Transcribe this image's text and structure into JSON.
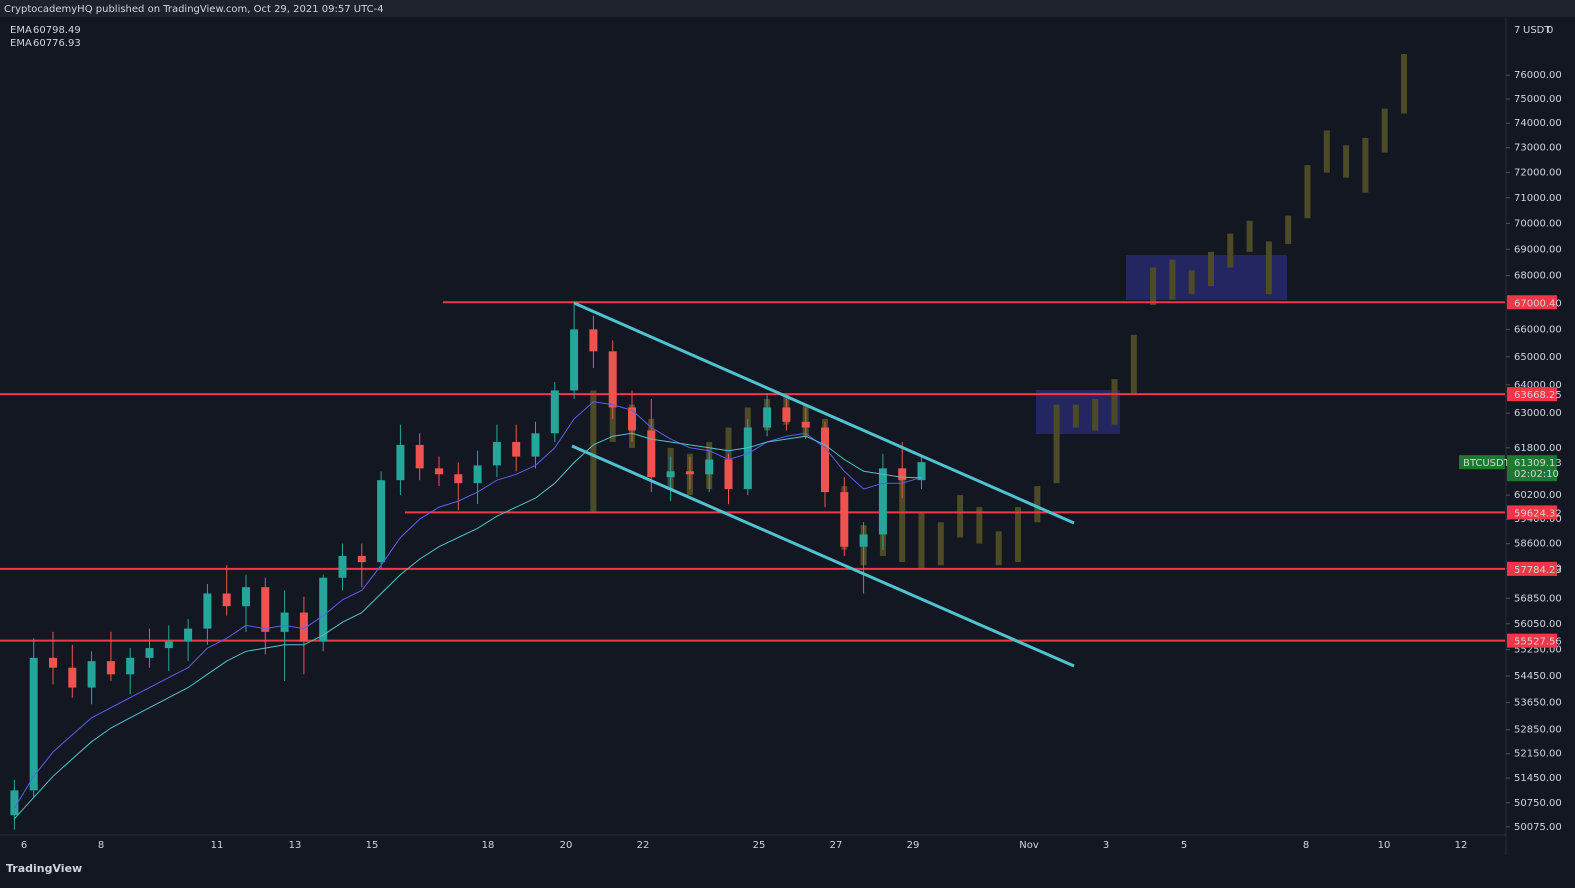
{
  "header": {
    "title": "CryptocademyHQ published on TradingView.com, Oct 29, 2021 09:57 UTC-4",
    "top_right": [
      "7",
      "USDT",
      "0"
    ],
    "footer": "TradingView"
  },
  "chart_data": {
    "type": "candlestick",
    "log_scale": true,
    "ylim": [
      49850,
      78450
    ],
    "yticks": [
      {
        "value": 76000,
        "label": "76000.00"
      },
      {
        "value": 75000,
        "label": "75000.00"
      },
      {
        "value": 74000,
        "label": "74000.00"
      },
      {
        "value": 73000,
        "label": "73000.00"
      },
      {
        "value": 72000,
        "label": "72000.00"
      },
      {
        "value": 71000,
        "label": "71000.00"
      },
      {
        "value": 70000,
        "label": "70000.00"
      },
      {
        "value": 69000,
        "label": "69000.00"
      },
      {
        "value": 68000,
        "label": "68000.00"
      },
      {
        "value": 66000,
        "label": "66000.00"
      },
      {
        "value": 65000,
        "label": "65000.00"
      },
      {
        "value": 64000,
        "label": "64000.00"
      },
      {
        "value": 63000,
        "label": "63000.00"
      },
      {
        "value": 61800,
        "label": "61800.00"
      },
      {
        "value": 60200,
        "label": "60200.00"
      },
      {
        "value": 59400,
        "label": "59400.00"
      },
      {
        "value": 58600,
        "label": "58600.00"
      },
      {
        "value": 57800,
        "label": "57800.00"
      },
      {
        "value": 56850,
        "label": "56850.00"
      },
      {
        "value": 56050,
        "label": "56050.00"
      },
      {
        "value": 55250,
        "label": "55250.00"
      },
      {
        "value": 54450,
        "label": "54450.00"
      },
      {
        "value": 53650,
        "label": "53650.00"
      },
      {
        "value": 52850,
        "label": "52850.00"
      },
      {
        "value": 52150,
        "label": "52150.00"
      },
      {
        "value": 51450,
        "label": "51450.00"
      },
      {
        "value": 50750,
        "label": "50750.00"
      },
      {
        "value": 50075,
        "label": "50075.00"
      }
    ],
    "xtick_labels": [
      "6",
      "8",
      "11",
      "13",
      "15",
      "18",
      "20",
      "22",
      "25",
      "27",
      "29",
      "Nov",
      "3",
      "5",
      "8",
      "10",
      "12"
    ],
    "up_color": "#26a69a",
    "down_color": "#ef5350",
    "open": [
      50400,
      51100,
      55000,
      54700,
      54100,
      54900,
      54500,
      55000,
      55300,
      55500,
      55900,
      57000,
      56600,
      57200,
      55800,
      56400,
      55500,
      57500,
      58200,
      58000,
      60700,
      61900,
      61100,
      60900,
      60600,
      61200,
      62000,
      61500,
      62300,
      63800,
      66000,
      65200,
      63200,
      62400,
      60800,
      61000,
      60900,
      61400,
      60400,
      62500,
      63200,
      62700,
      62500,
      60300,
      58500,
      58900,
      61100,
      60700
    ],
    "high": [
      51400,
      55600,
      55800,
      55400,
      55200,
      55800,
      55300,
      55900,
      56000,
      56200,
      57300,
      57900,
      57600,
      57500,
      57100,
      56900,
      57600,
      58600,
      58600,
      61000,
      62600,
      62300,
      61500,
      61300,
      61700,
      62600,
      62600,
      62700,
      64100,
      66900,
      66500,
      65600,
      63800,
      63500,
      61500,
      61500,
      61700,
      61600,
      62800,
      63700,
      63500,
      63200,
      62700,
      60800,
      59300,
      61600,
      62000,
      61500
    ],
    "low": [
      50000,
      50900,
      54200,
      53800,
      53600,
      54300,
      53900,
      54700,
      54600,
      54900,
      55400,
      56300,
      55800,
      55100,
      54300,
      54500,
      55200,
      57100,
      57200,
      57800,
      60200,
      60700,
      60500,
      59700,
      59900,
      60800,
      61000,
      61100,
      62000,
      63500,
      64600,
      62800,
      62000,
      60300,
      60000,
      60400,
      60300,
      59900,
      60200,
      62200,
      62400,
      62100,
      59800,
      58200,
      57000,
      58400,
      60100,
      60400
    ],
    "close": [
      51100,
      55000,
      54700,
      54100,
      54900,
      54500,
      55000,
      55300,
      55500,
      55900,
      57000,
      56600,
      57200,
      55800,
      56400,
      55500,
      57500,
      58200,
      58000,
      60700,
      61900,
      61100,
      60900,
      60600,
      61200,
      62000,
      61500,
      62300,
      63800,
      66000,
      65200,
      63200,
      62400,
      60800,
      61000,
      60900,
      61400,
      60400,
      62500,
      63200,
      62700,
      62500,
      60300,
      58500,
      58900,
      61100,
      60700,
      61309.13
    ],
    "series": [
      {
        "name": "EMA",
        "color": "#5b5ff0",
        "values": [
          50600,
          51500,
          52200,
          52700,
          53200,
          53500,
          53800,
          54100,
          54400,
          54700,
          55300,
          55600,
          56000,
          55900,
          56000,
          55900,
          56300,
          56800,
          57100,
          57900,
          58800,
          59400,
          59800,
          60000,
          60300,
          60700,
          60900,
          61200,
          61800,
          62800,
          63400,
          63300,
          63100,
          62500,
          62100,
          61800,
          61700,
          61400,
          61600,
          62000,
          62200,
          62300,
          61800,
          61000,
          60400,
          60600,
          60600,
          60798.49
        ]
      },
      {
        "name": "EMA",
        "color": "#4fc3c7",
        "values": [
          50300,
          50900,
          51500,
          52000,
          52500,
          52900,
          53200,
          53500,
          53800,
          54100,
          54500,
          54900,
          55200,
          55300,
          55400,
          55400,
          55700,
          56100,
          56400,
          57000,
          57600,
          58100,
          58500,
          58800,
          59100,
          59500,
          59800,
          60100,
          60600,
          61300,
          61900,
          62200,
          62300,
          62100,
          62000,
          61900,
          61800,
          61700,
          61800,
          62000,
          62100,
          62200,
          61900,
          61400,
          61000,
          60900,
          60800,
          60776.93
        ]
      }
    ],
    "projection": {
      "color": "#4d4b26",
      "high": [
        63800,
        63500,
        63300,
        62800,
        61800,
        61600,
        62000,
        62500,
        63200,
        63500,
        63700,
        63300,
        62800,
        60500,
        59200,
        59600,
        61000,
        59600,
        59300,
        60200,
        59800,
        59000,
        59800,
        60500,
        63300,
        63300,
        63500,
        64200,
        65800,
        68300,
        68600,
        68200,
        68900,
        69600,
        70100,
        69300,
        70300,
        72300,
        73700,
        73100,
        73400,
        74600,
        76900
      ],
      "low": [
        59600,
        62000,
        61800,
        60800,
        60400,
        60200,
        60400,
        60800,
        61800,
        62400,
        62600,
        62200,
        60400,
        58400,
        57900,
        58200,
        58000,
        57800,
        57900,
        58800,
        58600,
        57900,
        58000,
        59300,
        60600,
        62500,
        62400,
        62600,
        63700,
        66900,
        67100,
        67300,
        67600,
        68300,
        68900,
        67300,
        69200,
        70200,
        72000,
        71800,
        71200,
        72800,
        74400
      ]
    },
    "levels": [
      67000.4,
      63668.25,
      59624.32,
      57784.23,
      55527.56
    ],
    "level_labels": [
      "67000.40",
      "63668.25",
      "59624.32",
      "57784.23",
      "55527.56"
    ],
    "level_color": "#f23645",
    "symbol": "BTCUSDT",
    "countdown": "02:02:10",
    "price_color": "#1b7a2f"
  }
}
